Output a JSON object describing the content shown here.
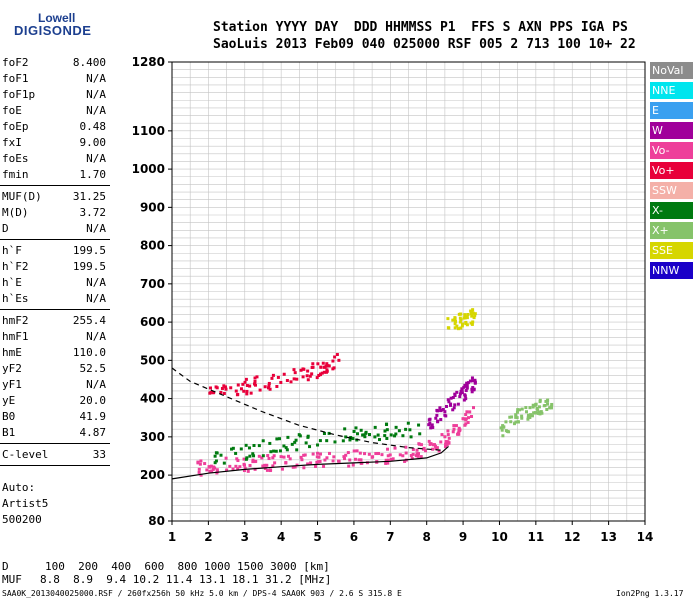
{
  "logo": {
    "brand": "Lowell",
    "product": "DIGISONDE"
  },
  "header": {
    "row1": "Station YYYY DAY  DDD HHMMSS P1  FFS S AXN PPS IGA PS",
    "row2": "SaoLuis 2013 Feb09 040 025000 RSF 005 2 713 100 10+ 22"
  },
  "params": [
    {
      "k": "foF2",
      "v": "8.400"
    },
    {
      "k": "foF1",
      "v": "N/A"
    },
    {
      "k": "foF1p",
      "v": "N/A"
    },
    {
      "k": "foE",
      "v": "N/A"
    },
    {
      "k": "foEp",
      "v": "0.48"
    },
    {
      "k": "fxI",
      "v": "9.00"
    },
    {
      "k": "foEs",
      "v": "N/A"
    },
    {
      "k": "fmin",
      "v": "1.70"
    },
    {
      "k": "MUF(D)",
      "v": "31.25"
    },
    {
      "k": "M(D)",
      "v": "3.72"
    },
    {
      "k": "D",
      "v": "N/A"
    },
    {
      "k": "h`F",
      "v": "199.5"
    },
    {
      "k": "h`F2",
      "v": "199.5"
    },
    {
      "k": "h`E",
      "v": "N/A"
    },
    {
      "k": "h`Es",
      "v": "N/A"
    },
    {
      "k": "hmF2",
      "v": "255.4"
    },
    {
      "k": "hmF1",
      "v": "N/A"
    },
    {
      "k": "hmE",
      "v": "110.0"
    },
    {
      "k": "yF2",
      "v": "52.5"
    },
    {
      "k": "yF1",
      "v": "N/A"
    },
    {
      "k": "yE",
      "v": "20.0"
    },
    {
      "k": "B0",
      "v": "41.9"
    },
    {
      "k": "B1",
      "v": "4.87"
    },
    {
      "k": "C-level",
      "v": "33"
    }
  ],
  "auto": {
    "line1": "Auto:",
    "line2": "Artist5",
    "line3": "500200"
  },
  "legend": [
    {
      "label": "NoVal",
      "color": "#8c8c8c"
    },
    {
      "label": "NNE",
      "color": "#00e5ee"
    },
    {
      "label": "E",
      "color": "#3aa0f0"
    },
    {
      "label": "W",
      "color": "#a0009a"
    },
    {
      "label": "Vo-",
      "color": "#ee3f9a"
    },
    {
      "label": "Vo+",
      "color": "#e8003a"
    },
    {
      "label": "SSW",
      "color": "#f4b0a8"
    },
    {
      "label": "X-",
      "color": "#007a10"
    },
    {
      "label": "X+",
      "color": "#86c36a"
    },
    {
      "label": "SSE",
      "color": "#d6d600"
    },
    {
      "label": "NNW",
      "color": "#1a00c8"
    }
  ],
  "chart_data": {
    "type": "scatter",
    "title": "",
    "xlabel": "",
    "ylabel": "",
    "xlim": [
      1,
      14
    ],
    "ylim": [
      80,
      1280
    ],
    "x_ticks": [
      1,
      2,
      3,
      4,
      5,
      6,
      7,
      8,
      9,
      10,
      11,
      12,
      13,
      14
    ],
    "y_ticks": [
      80,
      200,
      300,
      400,
      500,
      600,
      700,
      800,
      900,
      1000,
      1100,
      1280
    ],
    "grid": true,
    "series": [
      {
        "name": "Vo-",
        "color": "#ee3f9a",
        "trace": [
          [
            1.6,
            220
          ],
          [
            2.5,
            230
          ],
          [
            3.5,
            235
          ],
          [
            4.5,
            240
          ],
          [
            5.5,
            245
          ],
          [
            6.5,
            250
          ],
          [
            7.5,
            260
          ],
          [
            8.2,
            280
          ],
          [
            8.8,
            320
          ],
          [
            9.3,
            380
          ]
        ]
      },
      {
        "name": "Vo+",
        "color": "#e8003a",
        "trace": [
          [
            2.0,
            420
          ],
          [
            3.0,
            435
          ],
          [
            4.0,
            455
          ],
          [
            5.0,
            480
          ],
          [
            5.6,
            505
          ]
        ]
      },
      {
        "name": "X-",
        "color": "#007a10",
        "trace": [
          [
            2.0,
            245
          ],
          [
            3.5,
            275
          ],
          [
            5.0,
            300
          ],
          [
            6.5,
            315
          ],
          [
            7.8,
            325
          ]
        ]
      },
      {
        "name": "W",
        "color": "#a0009a",
        "trace": [
          [
            8.0,
            330
          ],
          [
            8.5,
            380
          ],
          [
            9.0,
            420
          ],
          [
            9.3,
            450
          ]
        ]
      },
      {
        "name": "X+",
        "color": "#86c36a",
        "trace": [
          [
            10.0,
            320
          ],
          [
            10.5,
            360
          ],
          [
            11.0,
            380
          ],
          [
            11.4,
            390
          ]
        ]
      },
      {
        "name": "SSE",
        "color": "#d6d600",
        "trace": [
          [
            8.5,
            600
          ],
          [
            9.0,
            610
          ],
          [
            9.3,
            620
          ]
        ]
      }
    ],
    "lines": [
      {
        "name": "profile",
        "style": "solid",
        "points": [
          [
            1,
            190
          ],
          [
            2,
            205
          ],
          [
            3,
            215
          ],
          [
            4,
            222
          ],
          [
            5,
            228
          ],
          [
            6,
            232
          ],
          [
            7,
            236
          ],
          [
            8,
            245
          ],
          [
            8.4,
            258
          ],
          [
            8.6,
            275
          ]
        ]
      },
      {
        "name": "profile-dashed",
        "style": "dashed",
        "points": [
          [
            1,
            480
          ],
          [
            1.5,
            445
          ],
          [
            2.5,
            405
          ],
          [
            3.5,
            365
          ],
          [
            4.5,
            330
          ],
          [
            5.5,
            305
          ],
          [
            6.5,
            285
          ],
          [
            7.5,
            272
          ],
          [
            8.4,
            265
          ]
        ]
      }
    ]
  },
  "footer": {
    "d_label": "D",
    "d_values": "100  200  400  600  800 1000 1500 3000 [km]",
    "muf_label": "MUF",
    "muf_values": "8.8  8.9  9.4 10.2 11.4 13.1 18.1 31.2 [MHz]",
    "info": "SAA0K_2013040025000.RSF / 260fx256h 50 kHz 5.0 km / DPS-4 SAA0K 903 / 2.6 S 315.8 E",
    "version": "Ion2Png 1.3.17"
  }
}
